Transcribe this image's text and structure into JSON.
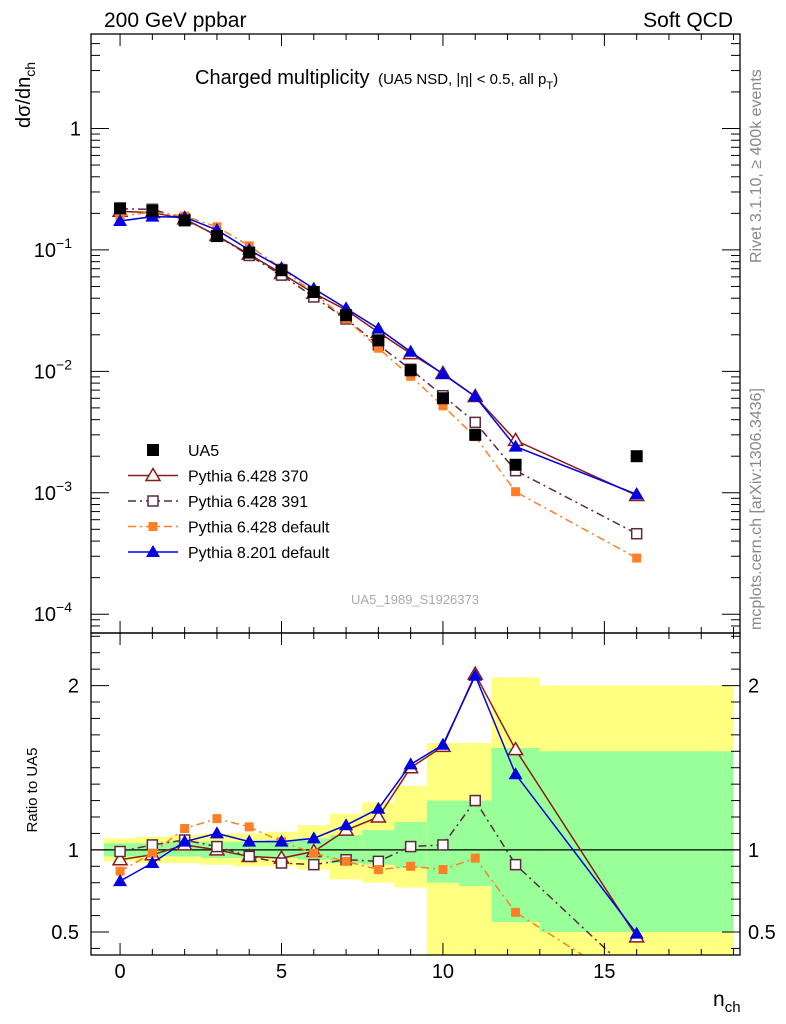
{
  "header": {
    "left": "200 GeV ppbar",
    "right": "Soft QCD"
  },
  "side": {
    "rivet": "Rivet 3.1.10, ≥ 400k events",
    "mcplots": "mcplots.cern.ch [arXiv:1306.3436]"
  },
  "title": {
    "main": "Charged multiplicity",
    "sub": "(UA5 NSD, |η| < 0.5, all p",
    "sub_sub": "T",
    "sub_end": ")"
  },
  "watermark": "UA5_1989_S1926373",
  "colors": {
    "data": "#000000",
    "p370": "#8b1a1a",
    "p391": "#5a2a3a",
    "pdef": "#ff7f27",
    "p8": "#0000e0",
    "band_outer": "#ffff80",
    "band_inner": "#99ff99"
  },
  "chart_data": [
    {
      "type": "scatter",
      "title": "Charged multiplicity",
      "ylabel": "dσ/dn_ch",
      "yscale": "log",
      "ylim": [
        7e-05,
        6
      ],
      "xlim": [
        -0.9,
        19.2
      ],
      "yticks": [
        {
          "v": 0.0001,
          "m": "10",
          "e": "−4"
        },
        {
          "v": 0.001,
          "m": "10",
          "e": "−3"
        },
        {
          "v": 0.01,
          "m": "10",
          "e": "−2"
        },
        {
          "v": 0.1,
          "m": "10",
          "e": "−1"
        },
        {
          "v": 1,
          "m": "1",
          "e": ""
        }
      ],
      "series": [
        {
          "name": "UA5",
          "key": "data",
          "style": "data",
          "x": [
            0,
            1,
            2,
            3,
            4,
            5,
            6,
            7,
            8,
            9,
            10,
            11,
            12.25,
            16
          ],
          "y": [
            0.22,
            0.21,
            0.175,
            0.13,
            0.095,
            0.068,
            0.045,
            0.029,
            0.018,
            0.0102,
            0.006,
            0.003,
            0.0017,
            0.002
          ]
        },
        {
          "name": "Pythia 6.428 370",
          "key": "p370",
          "style": "solid",
          "marker": "tri-open",
          "x": [
            0,
            1,
            2,
            3,
            4,
            5,
            6,
            7,
            8,
            9,
            10,
            11,
            12.25,
            16
          ],
          "y": [
            0.208,
            0.203,
            0.18,
            0.131,
            0.092,
            0.064,
            0.044,
            0.032,
            0.021,
            0.014,
            0.0096,
            0.0062,
            0.0027,
            0.00095
          ]
        },
        {
          "name": "Pythia 6.428 391",
          "key": "p391",
          "style": "dashdot",
          "marker": "sq-open",
          "x": [
            0,
            1,
            2,
            3,
            4,
            5,
            6,
            7,
            8,
            9,
            10,
            11,
            12.25,
            16
          ],
          "y": [
            0.218,
            0.216,
            0.18,
            0.131,
            0.09,
            0.062,
            0.041,
            0.027,
            0.0165,
            0.0104,
            0.0063,
            0.0038,
            0.00152,
            0.00046
          ]
        },
        {
          "name": "Pythia 6.428 default",
          "key": "pdef",
          "style": "dashdot",
          "marker": "sq-filled",
          "x": [
            0,
            1,
            2,
            3,
            4,
            5,
            6,
            7,
            8,
            9,
            10,
            11,
            12.25,
            16
          ],
          "y": [
            0.19,
            0.205,
            0.19,
            0.155,
            0.108,
            0.071,
            0.044,
            0.027,
            0.0155,
            0.0091,
            0.0052,
            0.0029,
            0.00102,
            0.00029
          ]
        },
        {
          "name": "Pythia 8.201 default",
          "key": "p8",
          "style": "solid",
          "marker": "tri-filled",
          "x": [
            0,
            1,
            2,
            3,
            4,
            5,
            6,
            7,
            8,
            9,
            10,
            11,
            12.25,
            16
          ],
          "y": [
            0.173,
            0.188,
            0.186,
            0.146,
            0.1,
            0.071,
            0.048,
            0.033,
            0.0225,
            0.0145,
            0.0095,
            0.0062,
            0.0024,
            0.00097
          ]
        }
      ]
    },
    {
      "type": "line",
      "ylabel": "Ratio to UA5",
      "xlabel": "n_ch",
      "ylim": [
        0.36,
        2.32
      ],
      "xlim": [
        -0.9,
        19.2
      ],
      "xticks": [
        0,
        5,
        10,
        15
      ],
      "yticks": [
        0.5,
        1,
        2
      ],
      "reference_line": 1,
      "bands": {
        "edges": [
          -0.5,
          0.5,
          1.5,
          2.5,
          3.5,
          4.5,
          5.5,
          6.5,
          7.5,
          8.5,
          9.5,
          10.5,
          11.5,
          13,
          19
        ],
        "outer_lo": [
          0.93,
          0.92,
          0.92,
          0.91,
          0.9,
          0.9,
          0.88,
          0.82,
          0.8,
          0.77,
          0.3,
          0.3,
          0.3,
          0.3
        ],
        "outer_hi": [
          1.07,
          1.08,
          1.09,
          1.1,
          1.1,
          1.11,
          1.15,
          1.22,
          1.29,
          1.39,
          1.65,
          1.65,
          2.05,
          2.0
        ],
        "inner_lo": [
          0.96,
          0.96,
          0.96,
          0.95,
          0.95,
          0.95,
          0.94,
          0.92,
          0.91,
          0.89,
          0.8,
          0.78,
          0.56,
          0.5
        ],
        "inner_hi": [
          1.04,
          1.04,
          1.05,
          1.05,
          1.05,
          1.06,
          1.07,
          1.09,
          1.12,
          1.17,
          1.3,
          1.3,
          1.62,
          1.6
        ]
      },
      "series": [
        {
          "name": "Pythia 6.428 370",
          "key": "p370",
          "style": "solid",
          "marker": "tri-open",
          "x": [
            0,
            1,
            2,
            3,
            4,
            5,
            6,
            7,
            8,
            9,
            10,
            11,
            12.25,
            16
          ],
          "y": [
            0.94,
            0.97,
            1.03,
            1.0,
            0.96,
            0.95,
            0.99,
            1.12,
            1.2,
            1.5,
            1.63,
            2.07,
            1.61,
            0.47
          ]
        },
        {
          "name": "Pythia 6.428 391",
          "key": "p391",
          "style": "dashdot",
          "marker": "sq-open",
          "x": [
            0,
            1,
            2,
            3,
            4,
            5,
            6,
            7,
            8,
            9,
            10,
            11,
            12.25,
            16
          ],
          "y": [
            0.99,
            1.03,
            1.06,
            1.02,
            0.96,
            0.92,
            0.91,
            0.94,
            0.93,
            1.02,
            1.03,
            1.3,
            0.91,
            0.22
          ]
        },
        {
          "name": "Pythia 6.428 default",
          "key": "pdef",
          "style": "dashdot",
          "marker": "sq-filled",
          "x": [
            0,
            1,
            2,
            3,
            4,
            5,
            6,
            7,
            8,
            9,
            10,
            11,
            12.25,
            16
          ],
          "y": [
            0.87,
            0.98,
            1.13,
            1.19,
            1.14,
            1.05,
            0.98,
            0.93,
            0.88,
            0.9,
            0.88,
            0.95,
            0.62,
            0.15
          ]
        },
        {
          "name": "Pythia 8.201 default",
          "key": "p8",
          "style": "solid",
          "marker": "tri-filled",
          "x": [
            0,
            1,
            2,
            3,
            4,
            5,
            6,
            7,
            8,
            9,
            10,
            11,
            12.25,
            16
          ],
          "y": [
            0.81,
            0.92,
            1.05,
            1.1,
            1.05,
            1.05,
            1.07,
            1.15,
            1.25,
            1.52,
            1.64,
            2.06,
            1.46,
            0.49
          ]
        }
      ]
    }
  ]
}
